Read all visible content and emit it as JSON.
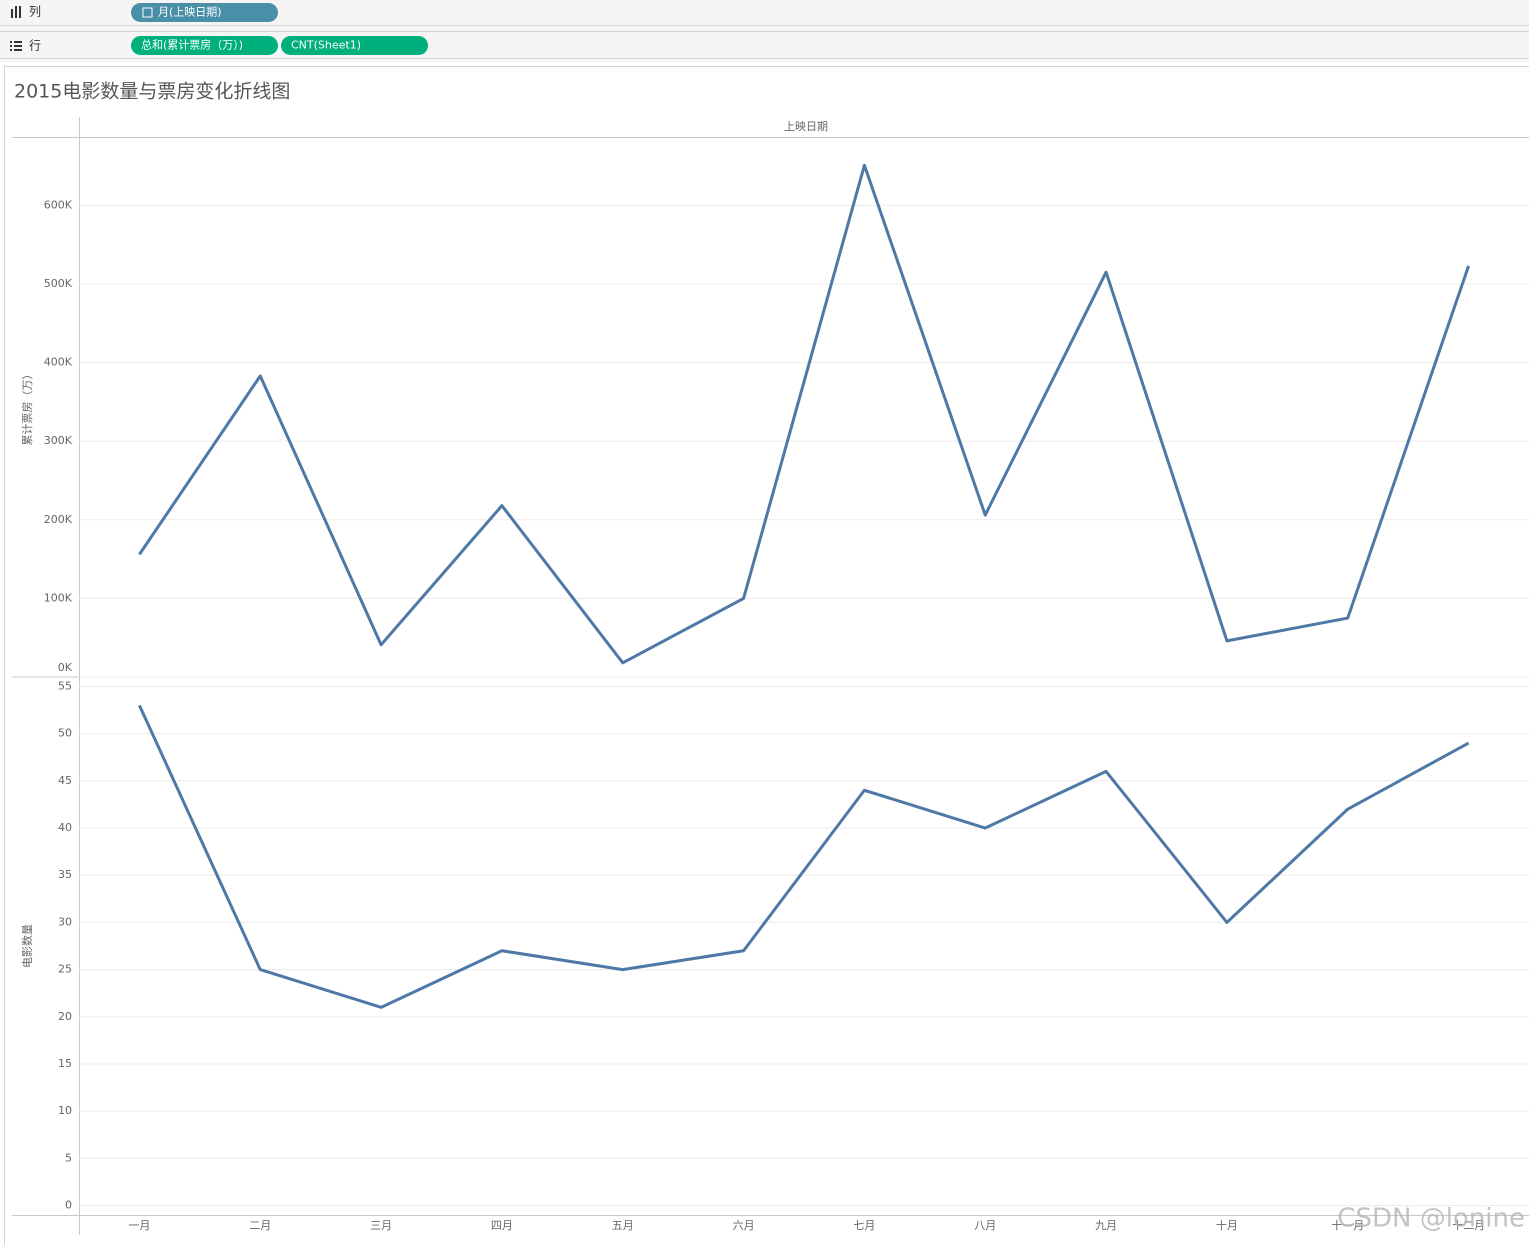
{
  "shelves": {
    "columns": {
      "label": "列",
      "pills": [
        "月(上映日期)"
      ]
    },
    "rows": {
      "label": "行",
      "pills": [
        "总和(累计票房（万）)",
        "CNT(Sheet1)"
      ]
    }
  },
  "title": "2015电影数量与票房变化折线图",
  "header": "上映日期",
  "watermark": "CSDN @lonine",
  "chart_data": [
    {
      "type": "line",
      "ylabel": "累计票房（万）",
      "color": "#4e79a7",
      "values": [
        156000,
        383000,
        41000,
        218000,
        18000,
        100000,
        651000,
        206000,
        515000,
        46000,
        75000,
        523000
      ],
      "ylim": [
        0,
        687000
      ],
      "yticks": [
        {
          "value": 0,
          "label": "0K"
        },
        {
          "value": 100000,
          "label": "100K"
        },
        {
          "value": 200000,
          "label": "200K"
        },
        {
          "value": 300000,
          "label": "300K"
        },
        {
          "value": 400000,
          "label": "400K"
        },
        {
          "value": 500000,
          "label": "500K"
        },
        {
          "value": 600000,
          "label": "600K"
        }
      ],
      "grid": true
    },
    {
      "type": "line",
      "ylabel": "电影数量",
      "color": "#4e79a7",
      "categories": [
        "一月",
        "二月",
        "三月",
        "四月",
        "五月",
        "六月",
        "七月",
        "八月",
        "九月",
        "十月",
        "十一月",
        "十二月"
      ],
      "values": [
        53,
        25,
        21,
        27,
        25,
        27,
        44,
        40,
        46,
        30,
        42,
        49
      ],
      "ylim": [
        -1,
        56
      ],
      "yticks": [
        0,
        5,
        10,
        15,
        20,
        25,
        30,
        35,
        40,
        45,
        50,
        55
      ],
      "grid": true
    }
  ]
}
